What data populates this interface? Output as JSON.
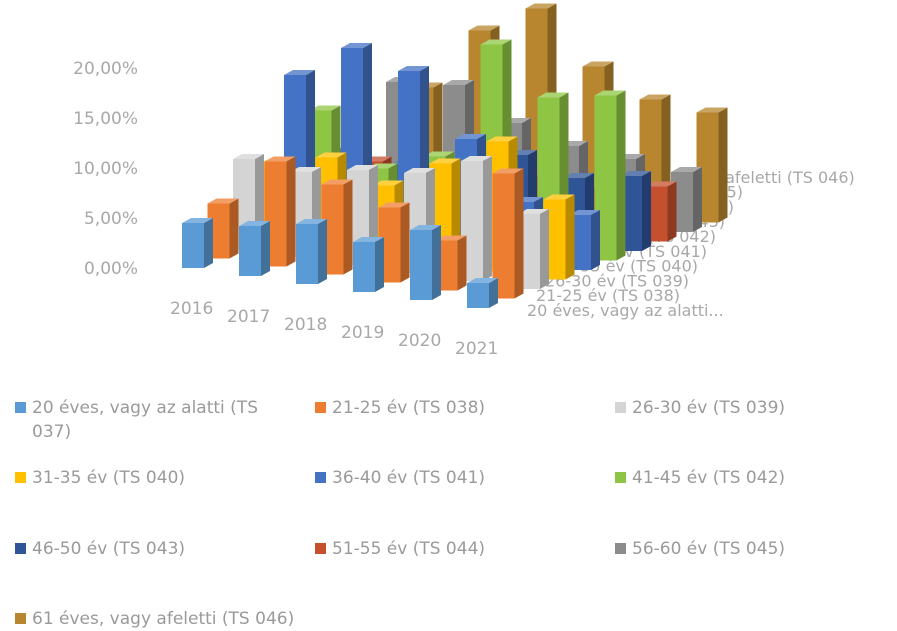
{
  "chart_data": {
    "type": "bar",
    "variant": "3d-column",
    "categories": [
      "2016",
      "2017",
      "2018",
      "2019",
      "2020",
      "2021"
    ],
    "yticks": [
      "0,00%",
      "5,00%",
      "10,00%",
      "15,00%",
      "20,00%"
    ],
    "ylim": [
      0,
      22
    ],
    "legend_position": "bottom",
    "depth_labels": [
      "20 éves, vagy az alatti...",
      "21-25 év (TS 038)",
      "26-30 év (TS 039)",
      "31-35 év (TS 040)",
      "36-40 év (TS 041)",
      "41-45 év (TS 042)",
      "46-50 év (TS 043)",
      "51-55 év (TS 044)",
      "56-60 év (TS 045)",
      "61 éves, vagy afeletti (TS 046)"
    ],
    "series": [
      {
        "name": "20 éves, vagy az alatti (TS 037)",
        "color": "#5b9bd5",
        "values": [
          4.5,
          5.0,
          6.0,
          5.0,
          7.0,
          2.5
        ]
      },
      {
        "name": "21-25 év (TS 038)",
        "color": "#ed7d31",
        "values": [
          5.5,
          10.5,
          9.0,
          7.5,
          5.0,
          12.5
        ]
      },
      {
        "name": "26-30 év (TS 039)",
        "color": "#d4d4d4",
        "values": [
          9.0,
          8.5,
          9.5,
          10.0,
          12.0,
          7.5
        ]
      },
      {
        "name": "31-35 év (TS 040)",
        "color": "#ffc000",
        "values": [
          7.5,
          9.0,
          7.0,
          10.0,
          13.0,
          8.0
        ]
      },
      {
        "name": "36-40 év (TS 041)",
        "color": "#4472c4",
        "values": [
          15.5,
          19.0,
          17.5,
          11.5,
          6.0,
          5.5
        ]
      },
      {
        "name": "41-45 év (TS 042)",
        "color": "#8fc544",
        "values": [
          11.0,
          6.0,
          8.0,
          20.0,
          15.5,
          16.5
        ]
      },
      {
        "name": "46-50 év (TS 043)",
        "color": "#2f5597",
        "values": [
          6.0,
          5.5,
          6.5,
          8.0,
          6.5,
          7.5
        ]
      },
      {
        "name": "51-55 év (TS 044)",
        "color": "#c5502e",
        "values": [
          4.0,
          3.5,
          3.0,
          5.0,
          4.5,
          5.5
        ]
      },
      {
        "name": "56-60 év (TS 045)",
        "color": "#8c8c8c",
        "values": [
          11.0,
          11.5,
          8.5,
          7.0,
          6.5,
          6.0
        ]
      },
      {
        "name": "61 éves, vagy afeletti (TS 046)",
        "color": "#b8862e",
        "values": [
          9.5,
          16.0,
          19.0,
          14.0,
          11.5,
          11.0
        ]
      }
    ]
  },
  "legend": [
    {
      "label": "20 éves, vagy az alatti (TS 037)",
      "color": "#5b9bd5"
    },
    {
      "label": "21-25 év (TS 038)",
      "color": "#ed7d31"
    },
    {
      "label": "26-30 év (TS 039)",
      "color": "#d4d4d4"
    },
    {
      "label": "31-35 év (TS 040)",
      "color": "#ffc000"
    },
    {
      "label": "36-40 év (TS 041)",
      "color": "#4472c4"
    },
    {
      "label": "41-45 év (TS 042)",
      "color": "#8fc544"
    },
    {
      "label": "46-50 év (TS 043)",
      "color": "#2f5597"
    },
    {
      "label": "51-55 év (TS 044)",
      "color": "#c5502e"
    },
    {
      "label": "56-60 év (TS 045)",
      "color": "#8c8c8c"
    },
    {
      "label": "61 éves, vagy afeletti (TS 046)",
      "color": "#b8862e"
    }
  ]
}
